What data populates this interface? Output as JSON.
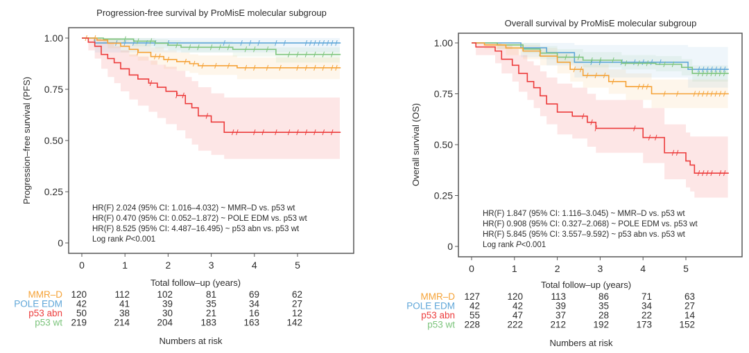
{
  "colors": {
    "MMR-D": "#f5a236",
    "POLE EDM": "#5ea6d8",
    "p53 abn": "#ec3b3b",
    "p53 wt": "#7cc47c",
    "text": "#2b2b2b",
    "frame": "#555555"
  },
  "chart_data": [
    {
      "type": "line",
      "subtype": "kaplan-meier",
      "title": "Progression-free survival by ProMisE molecular subgroup",
      "xlabel": "Total follow–up (years)",
      "ylabel": "Progression–free survival (PFS)",
      "xlim": [
        0,
        6
      ],
      "ylim": [
        0,
        1
      ],
      "xticks": [
        "0",
        "1",
        "2",
        "3",
        "4",
        "5"
      ],
      "yticks": [
        "0",
        "0.25",
        "0.50",
        "0.75",
        "1.00"
      ],
      "grid": false,
      "series": [
        {
          "name": "POLE EDM",
          "x": [
            0,
            0.3,
            6
          ],
          "y": [
            1.0,
            0.976,
            0.976
          ],
          "ci_lower": [
            1.0,
            0.93,
            0.93
          ],
          "ci_upper": [
            1.0,
            1.0,
            1.0
          ],
          "censor": [
            0.8,
            1.0,
            1.2,
            1.5,
            1.7,
            2.0,
            3.3,
            3.7,
            3.9,
            4.1,
            4.5,
            4.7,
            5.2,
            5.3,
            5.4,
            5.5,
            5.6,
            5.7,
            5.8,
            5.9
          ]
        },
        {
          "name": "p53 wt",
          "x": [
            0,
            0.5,
            1.2,
            1.7,
            2.0,
            2.3,
            3.5,
            4.5,
            6
          ],
          "y": [
            1.0,
            0.995,
            0.985,
            0.975,
            0.965,
            0.955,
            0.945,
            0.92,
            0.92
          ],
          "ci_lower": [
            1.0,
            0.98,
            0.96,
            0.95,
            0.94,
            0.93,
            0.91,
            0.88,
            0.88
          ],
          "ci_upper": [
            1.0,
            1.0,
            1.0,
            0.995,
            0.99,
            0.985,
            0.975,
            0.955,
            0.955
          ],
          "censor": [
            1.0,
            1.3,
            1.6,
            2.2,
            2.5,
            2.7,
            3.0,
            3.2,
            3.4,
            3.8,
            4.0,
            4.3,
            4.8,
            5.0,
            5.2,
            5.4,
            5.6,
            5.8
          ]
        },
        {
          "name": "MMR-D",
          "x": [
            0,
            0.35,
            0.6,
            0.9,
            1.1,
            1.3,
            1.6,
            1.9,
            2.2,
            2.5,
            2.7,
            3.6,
            6
          ],
          "y": [
            1.0,
            0.99,
            0.975,
            0.96,
            0.945,
            0.93,
            0.91,
            0.895,
            0.885,
            0.875,
            0.865,
            0.855,
            0.855
          ],
          "ci_lower": [
            1.0,
            0.97,
            0.95,
            0.93,
            0.91,
            0.89,
            0.87,
            0.85,
            0.84,
            0.83,
            0.82,
            0.8,
            0.8
          ],
          "ci_upper": [
            1.0,
            1.0,
            1.0,
            0.99,
            0.98,
            0.97,
            0.955,
            0.94,
            0.93,
            0.92,
            0.915,
            0.905,
            0.905
          ],
          "censor": [
            0.1,
            0.3,
            1.3,
            1.7,
            1.8,
            2.0,
            2.4,
            2.6,
            2.8,
            3.1,
            3.4,
            3.8,
            4.0,
            4.3,
            4.6,
            5.0,
            5.2,
            5.4,
            5.6,
            5.8,
            5.9
          ]
        },
        {
          "name": "p53 abn",
          "x": [
            0,
            0.15,
            0.3,
            0.45,
            0.6,
            0.75,
            0.9,
            1.1,
            1.3,
            1.55,
            1.75,
            1.95,
            2.2,
            2.4,
            2.55,
            2.7,
            3.0,
            3.3,
            6
          ],
          "y": [
            1.0,
            0.98,
            0.96,
            0.92,
            0.9,
            0.88,
            0.85,
            0.82,
            0.8,
            0.78,
            0.76,
            0.74,
            0.72,
            0.68,
            0.66,
            0.62,
            0.59,
            0.54,
            0.54
          ],
          "ci_lower": [
            1.0,
            0.94,
            0.9,
            0.85,
            0.81,
            0.78,
            0.74,
            0.7,
            0.67,
            0.64,
            0.61,
            0.58,
            0.55,
            0.51,
            0.48,
            0.45,
            0.43,
            0.41,
            0.41
          ],
          "ci_upper": [
            1.0,
            1.0,
            1.0,
            0.99,
            0.98,
            0.96,
            0.94,
            0.92,
            0.91,
            0.89,
            0.87,
            0.86,
            0.84,
            0.81,
            0.79,
            0.76,
            0.73,
            0.71,
            0.71
          ],
          "censor": [
            1.6,
            2.2,
            2.35,
            2.9,
            3.5,
            3.6,
            4.0,
            4.2,
            4.5,
            4.8,
            5.0,
            5.2,
            5.4,
            5.6,
            5.8
          ]
        }
      ],
      "annotations": [
        "HR(F) 2.024 (95% CI: 1.016–4.032) ~ MMR–D vs. p53 wt",
        "HR(F) 0.470 (95% CI: 0.052–1.872) ~ POLE EDM vs. p53 wt",
        "HR(F) 8.525 (95% CI: 4.487–16.495)  ~ p53 abn vs. p53 wt",
        "Log rank P<0.001"
      ],
      "risk_table": {
        "title": "Numbers at risk",
        "rows": [
          {
            "label": "MMR–D",
            "values": [
              120,
              112,
              102,
              81,
              69,
              62
            ]
          },
          {
            "label": "POLE EDM",
            "values": [
              42,
              41,
              39,
              35,
              34,
              27
            ]
          },
          {
            "label": "p53 abn",
            "values": [
              50,
              38,
              30,
              21,
              16,
              12
            ]
          },
          {
            "label": "p53 wt",
            "values": [
              219,
              214,
              204,
              183,
              163,
              142
            ]
          }
        ]
      }
    },
    {
      "type": "line",
      "subtype": "kaplan-meier",
      "title": "Overall survival by ProMisE molecular subgroup",
      "xlabel": "Total follow–up (years)",
      "ylabel": "Overall survival (OS)",
      "xlim": [
        0,
        6
      ],
      "ylim": [
        0,
        1
      ],
      "xticks": [
        "0",
        "1",
        "2",
        "3",
        "4",
        "5"
      ],
      "yticks": [
        "0",
        "0.25",
        "0.50",
        "0.75",
        "1.00"
      ],
      "grid": false,
      "series": [
        {
          "name": "POLE EDM",
          "x": [
            0,
            1.15,
            1.75,
            2.4,
            5.05,
            6
          ],
          "y": [
            1.0,
            0.976,
            0.952,
            0.905,
            0.87,
            0.87
          ],
          "ci_lower": [
            1.0,
            0.93,
            0.89,
            0.83,
            0.78,
            0.78
          ],
          "ci_upper": [
            1.0,
            1.0,
            1.0,
            0.99,
            0.98,
            0.98
          ],
          "censor": [
            2.8,
            3.0,
            3.5,
            3.8,
            4.0,
            4.2,
            4.4,
            5.3,
            5.4,
            5.5,
            5.6,
            5.7,
            5.8,
            5.9
          ]
        },
        {
          "name": "p53 wt",
          "x": [
            0,
            0.6,
            1.2,
            1.6,
            2.0,
            2.6,
            3.5,
            4.3,
            4.9,
            5.15,
            6
          ],
          "y": [
            1.0,
            0.99,
            0.97,
            0.95,
            0.93,
            0.915,
            0.9,
            0.895,
            0.88,
            0.85,
            0.85
          ],
          "ci_lower": [
            1.0,
            0.97,
            0.95,
            0.92,
            0.9,
            0.88,
            0.87,
            0.86,
            0.84,
            0.81,
            0.81
          ],
          "ci_upper": [
            1.0,
            1.0,
            1.0,
            0.985,
            0.97,
            0.955,
            0.94,
            0.935,
            0.92,
            0.89,
            0.89
          ],
          "censor": [
            1.6,
            2.2,
            2.5,
            2.8,
            3.0,
            3.3,
            3.6,
            3.9,
            4.1,
            4.5,
            4.7,
            5.3,
            5.4,
            5.5,
            5.6,
            5.7,
            5.8,
            5.9
          ]
        },
        {
          "name": "MMR-D",
          "x": [
            0,
            0.3,
            0.8,
            1.2,
            1.6,
            2.0,
            2.3,
            2.6,
            3.2,
            3.6,
            4.2,
            6
          ],
          "y": [
            1.0,
            0.99,
            0.975,
            0.96,
            0.935,
            0.905,
            0.87,
            0.84,
            0.81,
            0.785,
            0.75,
            0.75
          ],
          "ci_lower": [
            1.0,
            0.97,
            0.94,
            0.92,
            0.89,
            0.85,
            0.81,
            0.78,
            0.75,
            0.72,
            0.68,
            0.68
          ],
          "ci_upper": [
            1.0,
            1.0,
            1.0,
            0.99,
            0.975,
            0.95,
            0.92,
            0.895,
            0.87,
            0.85,
            0.82,
            0.82
          ],
          "censor": [
            2.4,
            2.55,
            2.7,
            2.9,
            3.1,
            3.3,
            3.9,
            4.0,
            4.1,
            4.5,
            4.8,
            5.2,
            5.3,
            5.4,
            5.5,
            5.6,
            5.7,
            5.8,
            5.9
          ]
        },
        {
          "name": "p53 abn",
          "x": [
            0,
            0.1,
            0.55,
            0.7,
            0.95,
            1.1,
            1.3,
            1.45,
            1.6,
            1.75,
            2.0,
            2.35,
            2.7,
            2.9,
            3.1,
            4.0,
            4.2,
            4.5,
            4.7,
            5.0,
            5.1,
            5.2,
            6
          ],
          "y": [
            1.0,
            0.98,
            0.96,
            0.92,
            0.89,
            0.85,
            0.81,
            0.78,
            0.74,
            0.7,
            0.66,
            0.64,
            0.61,
            0.58,
            0.58,
            0.535,
            0.535,
            0.46,
            0.46,
            0.42,
            0.4,
            0.36,
            0.36
          ],
          "ci_lower": [
            1.0,
            0.94,
            0.9,
            0.85,
            0.81,
            0.76,
            0.72,
            0.68,
            0.64,
            0.6,
            0.55,
            0.53,
            0.49,
            0.46,
            0.46,
            0.41,
            0.41,
            0.33,
            0.33,
            0.29,
            0.27,
            0.24,
            0.24
          ],
          "ci_upper": [
            1.0,
            1.0,
            1.0,
            0.99,
            0.97,
            0.94,
            0.91,
            0.89,
            0.86,
            0.83,
            0.8,
            0.78,
            0.75,
            0.72,
            0.72,
            0.68,
            0.68,
            0.6,
            0.6,
            0.56,
            0.54,
            0.54,
            0.54
          ],
          "censor": [
            2.6,
            2.8,
            2.9,
            3.8,
            4.15,
            4.3,
            4.7,
            4.8,
            5.3,
            5.4,
            5.5,
            5.6,
            5.8,
            5.9
          ]
        }
      ],
      "annotations": [
        "HR(F) 1.847 (95% CI: 1.116–3.045) ~ MMR–D vs. p53 wt",
        "HR(F) 0.908 (95% CI: 0.327–2.068) ~ POLE EDM vs. p53 wt",
        "HR(F) 5.845 (95% CI: 3.557–9.592) ~ p53 abn vs. p53 wt",
        "Log rank P<0.001"
      ],
      "risk_table": {
        "title": "Numbers at risk",
        "rows": [
          {
            "label": "MMR–D",
            "values": [
              127,
              120,
              113,
              86,
              71,
              63
            ]
          },
          {
            "label": "POLE EDM",
            "values": [
              42,
              42,
              39,
              35,
              34,
              27
            ]
          },
          {
            "label": "p53 abn",
            "values": [
              55,
              47,
              37,
              28,
              22,
              14
            ]
          },
          {
            "label": "p53 wt",
            "values": [
              228,
              222,
              212,
              192,
              173,
              152
            ]
          }
        ]
      }
    }
  ]
}
